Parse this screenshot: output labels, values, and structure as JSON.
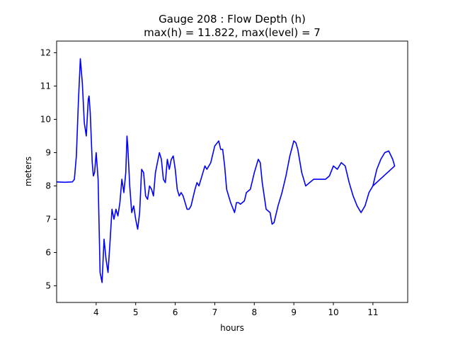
{
  "chart_data": {
    "type": "line",
    "title": "Gauge 208 : Flow Depth (h)",
    "subtitle": "max(h) =  11.822,    max(level) = 7",
    "xlabel": "hours",
    "ylabel": "meters",
    "xlim": [
      3.0,
      11.88
    ],
    "ylim": [
      4.5,
      12.35
    ],
    "xticks": [
      4,
      5,
      6,
      7,
      8,
      9,
      10,
      11
    ],
    "yticks": [
      5,
      6,
      7,
      8,
      9,
      10,
      11,
      12
    ],
    "grid": false,
    "line_color": "#0000ff",
    "series": [
      {
        "name": "",
        "x": [
          3.0,
          3.2,
          3.4,
          3.45,
          3.5,
          3.55,
          3.6,
          3.65,
          3.7,
          3.75,
          3.8,
          3.82,
          3.85,
          3.9,
          3.93,
          3.96,
          4.0,
          4.05,
          4.1,
          4.15,
          4.2,
          4.25,
          4.3,
          4.35,
          4.4,
          4.45,
          4.5,
          4.55,
          4.6,
          4.65,
          4.7,
          4.75,
          4.78,
          4.8,
          4.85,
          4.9,
          4.95,
          5.0,
          5.05,
          5.1,
          5.15,
          5.2,
          5.25,
          5.3,
          5.35,
          5.4,
          5.45,
          5.5,
          5.6,
          5.65,
          5.7,
          5.75,
          5.8,
          5.85,
          5.9,
          5.95,
          6.0,
          6.05,
          6.1,
          6.15,
          6.2,
          6.3,
          6.35,
          6.4,
          6.5,
          6.55,
          6.6,
          6.7,
          6.75,
          6.8,
          6.9,
          7.0,
          7.1,
          7.15,
          7.2,
          7.25,
          7.3,
          7.4,
          7.5,
          7.55,
          7.6,
          7.65,
          7.75,
          7.8,
          7.9,
          8.0,
          8.1,
          8.15,
          8.2,
          8.3,
          8.4,
          8.45,
          8.5,
          8.6,
          8.7,
          8.8,
          8.9,
          9.0,
          9.05,
          9.1,
          9.2,
          9.3,
          9.4,
          9.5,
          9.6,
          9.7,
          9.8,
          9.9,
          10.0,
          10.1,
          10.2,
          10.3,
          10.4,
          10.5,
          10.6,
          10.7,
          10.8,
          10.9,
          11.0,
          11.1,
          11.2,
          11.3,
          11.4,
          11.5,
          11.55,
          11.0
        ],
        "values": [
          8.12,
          8.11,
          8.12,
          8.2,
          8.9,
          10.5,
          11.82,
          11.1,
          9.9,
          9.5,
          10.6,
          10.7,
          10.2,
          8.7,
          8.3,
          8.4,
          9.0,
          8.2,
          5.4,
          5.1,
          6.4,
          5.8,
          5.4,
          6.3,
          7.3,
          7.0,
          7.3,
          7.1,
          7.5,
          8.2,
          7.8,
          8.4,
          9.5,
          9.2,
          8.0,
          7.2,
          7.4,
          7.0,
          6.7,
          7.2,
          8.5,
          8.4,
          7.7,
          7.6,
          8.0,
          7.9,
          7.7,
          8.4,
          9.0,
          8.8,
          8.2,
          8.1,
          8.8,
          8.5,
          8.8,
          8.9,
          8.5,
          7.9,
          7.7,
          7.8,
          7.7,
          7.3,
          7.3,
          7.4,
          7.9,
          8.1,
          8.0,
          8.4,
          8.6,
          8.5,
          8.7,
          9.2,
          9.35,
          9.1,
          9.1,
          8.6,
          7.9,
          7.5,
          7.2,
          7.5,
          7.5,
          7.45,
          7.55,
          7.8,
          7.9,
          8.4,
          8.8,
          8.7,
          8.1,
          7.3,
          7.2,
          6.85,
          6.9,
          7.4,
          7.8,
          8.3,
          8.9,
          9.35,
          9.3,
          9.1,
          8.4,
          8.0,
          8.1,
          8.2,
          8.2,
          8.2,
          8.2,
          8.3,
          8.6,
          8.5,
          8.7,
          8.6,
          8.1,
          7.7,
          7.4,
          7.2,
          7.4,
          7.8,
          8.0,
          8.5,
          8.8,
          9.0,
          9.05,
          8.8,
          8.6,
          8.0
        ]
      }
    ]
  }
}
